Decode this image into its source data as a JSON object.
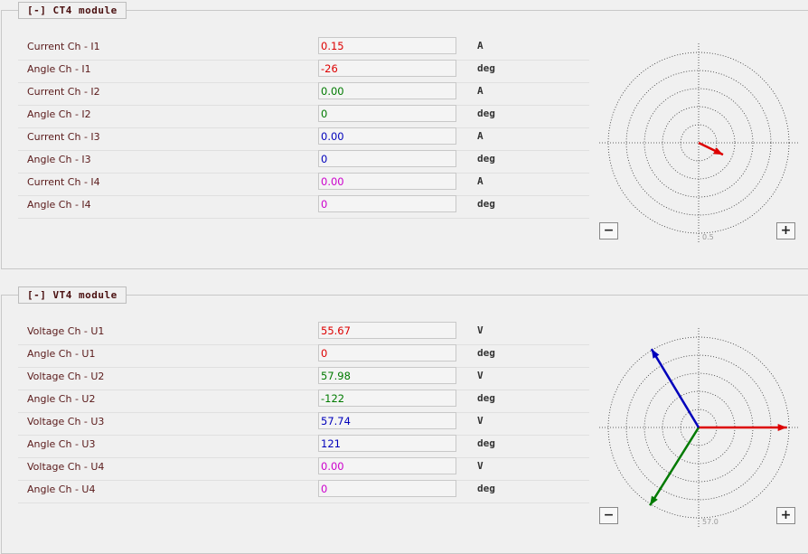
{
  "sections": [
    {
      "title": "[-] CT4 module",
      "rows": [
        {
          "label": "Current Ch - I1",
          "value": "0.15",
          "unit": "A"
        },
        {
          "label": "Angle Ch - I1",
          "value": "-26",
          "unit": "deg"
        },
        {
          "label": "Current Ch - I2",
          "value": "0.00",
          "unit": "A"
        },
        {
          "label": "Angle Ch - I2",
          "value": "0",
          "unit": "deg"
        },
        {
          "label": "Current Ch - I3",
          "value": "0.00",
          "unit": "A"
        },
        {
          "label": "Angle Ch - I3",
          "value": "0",
          "unit": "deg"
        },
        {
          "label": "Current Ch - I4",
          "value": "0.00",
          "unit": "A"
        },
        {
          "label": "Angle Ch - I4",
          "value": "0",
          "unit": "deg"
        }
      ],
      "scale": 0.5,
      "buttons": [
        "−",
        "+"
      ]
    },
    {
      "title": "[-] VT4 module",
      "rows": [
        {
          "label": "Voltage Ch - U1",
          "value": "55.67",
          "unit": "V"
        },
        {
          "label": "Angle Ch - U1",
          "value": "0",
          "unit": "deg"
        },
        {
          "label": "Voltage Ch - U2",
          "value": "57.98",
          "unit": "V"
        },
        {
          "label": "Angle Ch - U2",
          "value": "-122",
          "unit": "deg"
        },
        {
          "label": "Voltage Ch - U3",
          "value": "57.74",
          "unit": "V"
        },
        {
          "label": "Angle Ch - U3",
          "value": "121",
          "unit": "deg"
        },
        {
          "label": "Voltage Ch - U4",
          "value": "0.00",
          "unit": "V"
        },
        {
          "label": "Angle Ch - U4",
          "value": "0",
          "unit": "deg"
        }
      ],
      "scale": {
        "value": 57,
        "label": "57.0"
      },
      "buttons": [
        "−",
        "+"
      ]
    }
  ],
  "channel_colors": [
    "#dd0000",
    "#007a00",
    "#0000bb",
    "#cc00cc"
  ]
}
